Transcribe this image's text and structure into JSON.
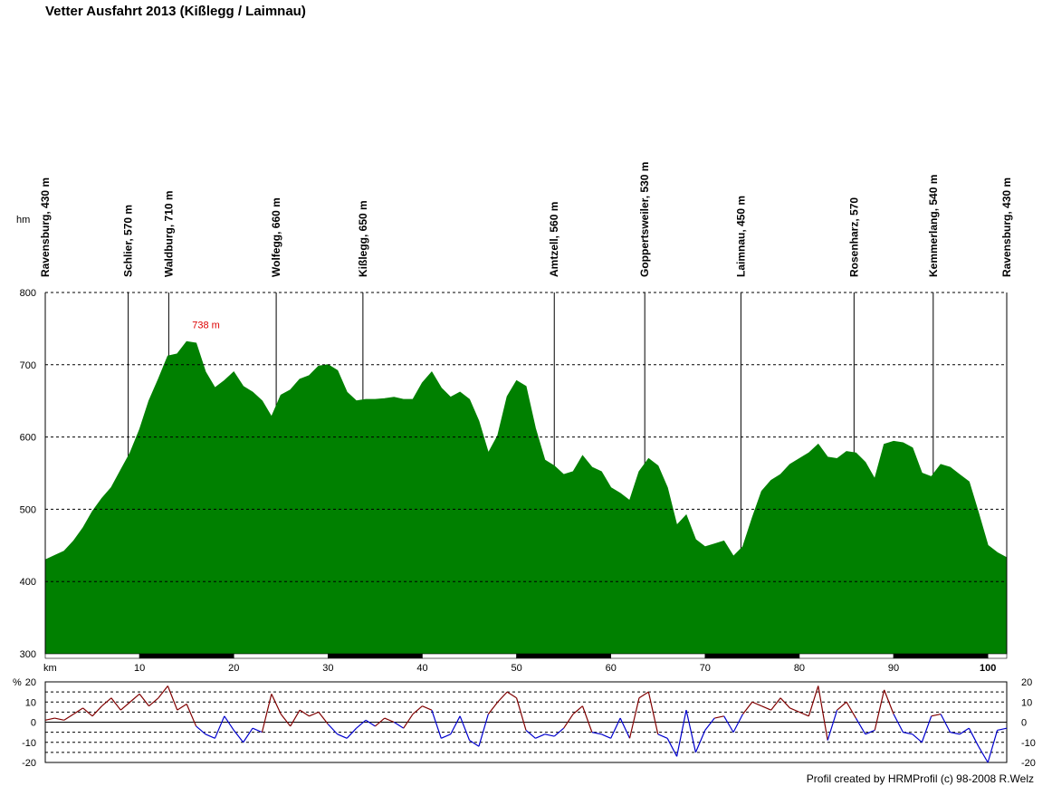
{
  "chart_data": {
    "type": "area",
    "title": "Vetter Ausfahrt 2013 (Kißlegg / Laimnau)",
    "elevation_unit": "hm",
    "distance_unit": "km",
    "gradient_unit": "%",
    "xlim": [
      0,
      102
    ],
    "ylim": [
      300,
      800
    ],
    "y_ticks": [
      300,
      400,
      500,
      600,
      700,
      800
    ],
    "x_ticks": [
      10,
      20,
      30,
      40,
      50,
      60,
      70,
      80,
      90,
      100
    ],
    "gradient_ylim": [
      -20,
      20
    ],
    "gradient_ticks_left": [
      "20",
      "10",
      "0",
      "-10",
      "-20"
    ],
    "gradient_ticks_right": [
      "20",
      "10",
      "0",
      "-10",
      "-20"
    ],
    "grid": true,
    "fill_color": "#008000",
    "uphill_color": "#800000",
    "downhill_color": "#0000cc",
    "max_label": {
      "km": 15.2,
      "elev": 738,
      "text": "738 m",
      "color": "#dd0000"
    },
    "waypoints": [
      {
        "km": 0,
        "label": "Ravensburg, 430 m"
      },
      {
        "km": 8.8,
        "label": "Schlier, 570 m"
      },
      {
        "km": 13.1,
        "label": "Waldburg, 710 m"
      },
      {
        "km": 24.5,
        "label": "Wolfegg, 660 m"
      },
      {
        "km": 33.7,
        "label": "Kißlegg, 650 m"
      },
      {
        "km": 54,
        "label": "Amtzell, 560 m"
      },
      {
        "km": 63.6,
        "label": "Goppertsweiler, 530 m"
      },
      {
        "km": 73.8,
        "label": "Laimnau, 450 m"
      },
      {
        "km": 85.8,
        "label": "Rosenharz, 570"
      },
      {
        "km": 94.2,
        "label": "Kemmerlang, 540 m"
      },
      {
        "km": 102,
        "label": "Ravensburg, 430 m"
      }
    ],
    "profile": {
      "km": [
        0,
        1,
        2,
        3,
        4,
        5,
        6,
        7,
        8,
        9,
        10,
        11,
        12,
        13,
        14,
        15,
        16,
        17,
        18,
        19,
        20,
        21,
        22,
        23,
        24,
        25,
        26,
        27,
        28,
        29,
        30,
        31,
        32,
        33,
        34,
        35,
        36,
        37,
        38,
        39,
        40,
        41,
        42,
        43,
        44,
        45,
        46,
        47,
        48,
        49,
        50,
        51,
        52,
        53,
        54,
        55,
        56,
        57,
        58,
        59,
        60,
        61,
        62,
        63,
        64,
        65,
        66,
        67,
        68,
        69,
        70,
        71,
        72,
        73,
        74,
        75,
        76,
        77,
        78,
        79,
        80,
        81,
        82,
        83,
        84,
        85,
        86,
        87,
        88,
        89,
        90,
        91,
        92,
        93,
        94,
        95,
        96,
        97,
        98,
        99,
        100,
        101,
        102
      ],
      "elev": [
        430,
        436,
        442,
        456,
        474,
        497,
        515,
        530,
        554,
        578,
        610,
        650,
        680,
        712,
        715,
        732,
        730,
        690,
        668,
        678,
        690,
        670,
        662,
        650,
        628,
        658,
        665,
        680,
        685,
        698,
        700,
        692,
        662,
        650,
        652,
        652,
        653,
        655,
        652,
        652,
        675,
        690,
        668,
        655,
        662,
        652,
        622,
        578,
        602,
        656,
        678,
        670,
        612,
        568,
        560,
        548,
        552,
        574,
        558,
        552,
        530,
        522,
        512,
        552,
        570,
        560,
        530,
        478,
        492,
        458,
        448,
        452,
        456,
        435,
        448,
        488,
        525,
        540,
        548,
        562,
        570,
        578,
        590,
        572,
        570,
        580,
        578,
        565,
        542,
        590,
        594,
        592,
        585,
        550,
        545,
        562,
        558,
        548,
        538,
        495,
        450,
        440,
        433
      ]
    },
    "gradient": {
      "km": [
        0,
        1,
        2,
        3,
        4,
        5,
        6,
        7,
        8,
        9,
        10,
        11,
        12,
        13,
        14,
        15,
        16,
        17,
        18,
        19,
        20,
        21,
        22,
        23,
        24,
        25,
        26,
        27,
        28,
        29,
        30,
        31,
        32,
        33,
        34,
        35,
        36,
        37,
        38,
        39,
        40,
        41,
        42,
        43,
        44,
        45,
        46,
        47,
        48,
        49,
        50,
        51,
        52,
        53,
        54,
        55,
        56,
        57,
        58,
        59,
        60,
        61,
        62,
        63,
        64,
        65,
        66,
        67,
        68,
        69,
        70,
        71,
        72,
        73,
        74,
        75,
        76,
        77,
        78,
        79,
        80,
        81,
        82,
        83,
        84,
        85,
        86,
        87,
        88,
        89,
        90,
        91,
        92,
        93,
        94,
        95,
        96,
        97,
        98,
        99,
        100,
        101,
        102
      ],
      "percent": [
        1,
        2,
        1,
        4,
        7,
        3,
        8,
        12,
        6,
        10,
        14,
        8,
        12,
        18,
        6,
        9,
        -2,
        -6,
        -8,
        3,
        -4,
        -10,
        -3,
        -5,
        14,
        4,
        -2,
        6,
        3,
        5,
        -1,
        -6,
        -8,
        -3,
        1,
        -2,
        2,
        0,
        -3,
        4,
        8,
        6,
        -8,
        -6,
        3,
        -9,
        -12,
        4,
        10,
        15,
        12,
        -4,
        -8,
        -6,
        -7,
        -3,
        4,
        8,
        -5,
        -6,
        -8,
        2,
        -8,
        12,
        15,
        -6,
        -8,
        -17,
        6,
        -15,
        -4,
        2,
        3,
        -5,
        4,
        10,
        8,
        6,
        12,
        7,
        5,
        3,
        18,
        -9,
        6,
        10,
        2,
        -6,
        -4,
        16,
        4,
        -5,
        -6,
        -10,
        3,
        4,
        -5,
        -6,
        -3,
        -12,
        -20,
        -4,
        -3
      ]
    }
  },
  "credit": "Profil created by HRMProfil (c) 98-2008 R.Welz"
}
